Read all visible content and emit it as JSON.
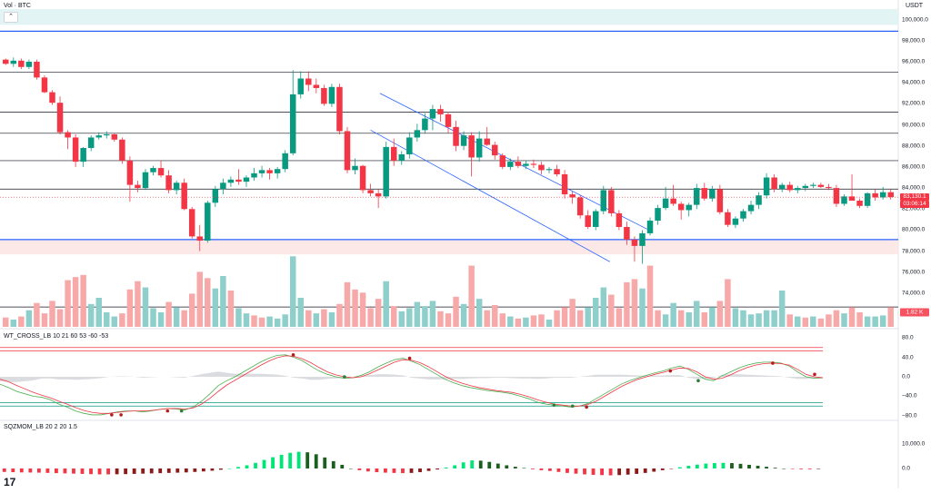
{
  "header": {
    "title": "Vol · BTC",
    "collapse_icon": "chevron-up-icon"
  },
  "price_axis": {
    "currency": "USDT",
    "ticks": [
      "100,000.0",
      "98,000.0",
      "96,000.0",
      "94,000.0",
      "92,000.0",
      "90,000.0",
      "88,000.0",
      "86,000.0",
      "84,000.0",
      "82,000.0",
      "80,000.0",
      "78,000.0",
      "76,000.0",
      "74,000.0",
      "72,000.0"
    ],
    "last_price": "83,130.1",
    "countdown": "03:06:14",
    "volume_value": "1.82 K"
  },
  "indicators": {
    "wt_cross": {
      "label": "WT_CROSS_LB 10 21 60 53 -60 -53",
      "ticks": [
        "80.0",
        "40.0",
        "0.0",
        "−40.0",
        "−80.0"
      ]
    },
    "sqz_mom": {
      "label": "SQZMOM_LB 20 2 20 1.5",
      "ticks": [
        "10,000.0",
        "0.0"
      ]
    }
  },
  "chart_data": {
    "type": "candlestick",
    "ylim": [
      71500,
      101000
    ],
    "grid": false,
    "horizontal_levels": [
      98900,
      95000,
      91200,
      89200,
      86600,
      83900,
      79100,
      72700
    ],
    "resistance_zone": [
      99500,
      101000
    ],
    "support_zone": [
      77700,
      79100
    ],
    "channel": {
      "upper": [
        [
          0.408,
          93000
        ],
        [
          0.695,
          80100
        ]
      ],
      "lower": [
        [
          0.398,
          89500
        ],
        [
          0.655,
          77000
        ]
      ]
    },
    "candles": [
      [
        96200,
        96300,
        95700,
        95800
      ],
      [
        95800,
        96400,
        95500,
        96100
      ],
      [
        96100,
        96300,
        95300,
        95500
      ],
      [
        95500,
        96200,
        95300,
        96000
      ],
      [
        96000,
        96200,
        94300,
        94500
      ],
      [
        94500,
        94700,
        93000,
        93100
      ],
      [
        93100,
        93300,
        91900,
        92100
      ],
      [
        92100,
        92700,
        89100,
        89300
      ],
      [
        89300,
        89500,
        87700,
        88800
      ],
      [
        88800,
        89100,
        86000,
        86500
      ],
      [
        86500,
        87900,
        86000,
        87800
      ],
      [
        87800,
        89000,
        87500,
        88800
      ],
      [
        88800,
        89300,
        88600,
        89000
      ],
      [
        89000,
        89400,
        88700,
        89100
      ],
      [
        89100,
        89200,
        88400,
        88600
      ],
      [
        88600,
        88800,
        86300,
        86600
      ],
      [
        86600,
        87000,
        82700,
        84300
      ],
      [
        84300,
        84700,
        83600,
        84000
      ],
      [
        84000,
        85800,
        83800,
        85500
      ],
      [
        85500,
        86100,
        85200,
        85900
      ],
      [
        85900,
        86600,
        85000,
        85200
      ],
      [
        85200,
        85700,
        83500,
        83800
      ],
      [
        83800,
        84700,
        83400,
        84500
      ],
      [
        84500,
        84900,
        81900,
        82000
      ],
      [
        82000,
        82200,
        79200,
        79400
      ],
      [
        79400,
        80500,
        78000,
        79000
      ],
      [
        79000,
        82800,
        78800,
        82600
      ],
      [
        82600,
        84200,
        82200,
        83900
      ],
      [
        83900,
        84900,
        83400,
        84500
      ],
      [
        84500,
        85100,
        84100,
        84800
      ],
      [
        84800,
        85800,
        84300,
        84600
      ],
      [
        84600,
        85200,
        84100,
        85000
      ],
      [
        85000,
        85900,
        84700,
        85400
      ],
      [
        85400,
        86100,
        85000,
        85700
      ],
      [
        85700,
        85900,
        84800,
        85400
      ],
      [
        85400,
        86000,
        84900,
        85800
      ],
      [
        85800,
        87600,
        85500,
        87300
      ],
      [
        87300,
        95200,
        87100,
        92900
      ],
      [
        92900,
        95100,
        92500,
        94400
      ],
      [
        94400,
        95100,
        93200,
        93800
      ],
      [
        93800,
        94400,
        93000,
        93500
      ],
      [
        93500,
        93800,
        91800,
        92000
      ],
      [
        92000,
        93900,
        91700,
        93600
      ],
      [
        93600,
        93900,
        89100,
        89400
      ],
      [
        89400,
        89800,
        85400,
        85700
      ],
      [
        85700,
        86800,
        85300,
        86100
      ],
      [
        86100,
        86200,
        83500,
        83800
      ],
      [
        83800,
        84400,
        83200,
        83500
      ],
      [
        83500,
        83900,
        82100,
        83200
      ],
      [
        83200,
        88400,
        83000,
        87900
      ],
      [
        87900,
        88700,
        86100,
        86600
      ],
      [
        86600,
        87500,
        86200,
        87200
      ],
      [
        87200,
        89300,
        86800,
        88800
      ],
      [
        88800,
        90100,
        88400,
        89500
      ],
      [
        89500,
        91100,
        89200,
        90600
      ],
      [
        90600,
        91900,
        89500,
        91500
      ],
      [
        91500,
        91900,
        90300,
        91000
      ],
      [
        91000,
        91200,
        89200,
        89800
      ],
      [
        89800,
        90400,
        87500,
        88000
      ],
      [
        88000,
        89400,
        87600,
        89000
      ],
      [
        89000,
        89300,
        85100,
        86900
      ],
      [
        86900,
        89400,
        86500,
        88700
      ],
      [
        88700,
        89800,
        88000,
        88100
      ],
      [
        88100,
        88400,
        86700,
        87100
      ],
      [
        87100,
        87300,
        85800,
        86000
      ],
      [
        86000,
        86800,
        85700,
        86500
      ],
      [
        86500,
        87000,
        85900,
        86100
      ],
      [
        86100,
        86600,
        85800,
        86300
      ],
      [
        86300,
        86700,
        85900,
        86200
      ],
      [
        86200,
        86500,
        85300,
        85700
      ],
      [
        85700,
        86000,
        85400,
        85800
      ],
      [
        85800,
        86200,
        85100,
        85300
      ],
      [
        85300,
        85700,
        83000,
        83400
      ],
      [
        83400,
        83700,
        82500,
        83100
      ],
      [
        83100,
        83300,
        81100,
        81400
      ],
      [
        81400,
        81900,
        80100,
        80300
      ],
      [
        80300,
        82000,
        80000,
        81800
      ],
      [
        81800,
        84200,
        81500,
        83800
      ],
      [
        83800,
        84100,
        81300,
        81600
      ],
      [
        81600,
        81900,
        80000,
        80300
      ],
      [
        80300,
        80800,
        78600,
        79100
      ],
      [
        79100,
        79400,
        77000,
        78500
      ],
      [
        78500,
        80000,
        76800,
        79700
      ],
      [
        79700,
        81200,
        79500,
        80900
      ],
      [
        80900,
        82400,
        80500,
        82100
      ],
      [
        82100,
        84100,
        81900,
        83000
      ],
      [
        83000,
        84300,
        82300,
        82500
      ],
      [
        82500,
        82700,
        81000,
        81900
      ],
      [
        81900,
        82600,
        81300,
        82400
      ],
      [
        82400,
        84400,
        82000,
        84000
      ],
      [
        84000,
        84500,
        82800,
        83000
      ],
      [
        83000,
        84200,
        82700,
        83900
      ],
      [
        83900,
        84300,
        81500,
        81700
      ],
      [
        81700,
        82000,
        80300,
        80500
      ],
      [
        80500,
        81300,
        80200,
        81100
      ],
      [
        81100,
        82000,
        80800,
        81800
      ],
      [
        81800,
        82800,
        81500,
        82400
      ],
      [
        82400,
        83600,
        82000,
        83300
      ],
      [
        83300,
        85400,
        83000,
        85000
      ],
      [
        85000,
        85300,
        83600,
        83900
      ],
      [
        83900,
        84500,
        83600,
        84300
      ],
      [
        84300,
        84600,
        83600,
        83800
      ],
      [
        83800,
        84200,
        83500,
        84000
      ],
      [
        84000,
        84400,
        83700,
        84200
      ],
      [
        84200,
        84500,
        84000,
        84300
      ],
      [
        84300,
        84500,
        84000,
        84100
      ],
      [
        84100,
        84400,
        83800,
        84000
      ],
      [
        84000,
        84300,
        82200,
        82500
      ],
      [
        82500,
        83400,
        82300,
        83200
      ],
      [
        83200,
        85300,
        83000,
        82800
      ],
      [
        82800,
        83000,
        82100,
        82300
      ],
      [
        82300,
        83600,
        82100,
        83500
      ],
      [
        83500,
        83900,
        82800,
        83100
      ],
      [
        83100,
        84100,
        82900,
        83600
      ],
      [
        83600,
        83900,
        82900,
        83130
      ]
    ],
    "volume": [
      [
        0.9,
        0
      ],
      [
        0.7,
        1
      ],
      [
        1.0,
        0
      ],
      [
        1.6,
        1
      ],
      [
        2.3,
        0
      ],
      [
        1.3,
        0
      ],
      [
        2.5,
        0
      ],
      [
        1.7,
        0
      ],
      [
        4.5,
        0
      ],
      [
        4.8,
        0
      ],
      [
        5.0,
        0
      ],
      [
        2.2,
        1
      ],
      [
        2.8,
        1
      ],
      [
        1.4,
        1
      ],
      [
        1.0,
        1
      ],
      [
        1.3,
        0
      ],
      [
        3.6,
        0
      ],
      [
        4.4,
        0
      ],
      [
        3.8,
        1
      ],
      [
        1.8,
        1
      ],
      [
        1.4,
        1
      ],
      [
        2.4,
        0
      ],
      [
        1.9,
        1
      ],
      [
        1.6,
        0
      ],
      [
        3.2,
        0
      ],
      [
        5.3,
        0
      ],
      [
        4.7,
        0
      ],
      [
        3.7,
        1
      ],
      [
        4.9,
        1
      ],
      [
        3.5,
        0
      ],
      [
        1.8,
        1
      ],
      [
        1.3,
        1
      ],
      [
        1.1,
        0
      ],
      [
        0.9,
        0
      ],
      [
        1.0,
        1
      ],
      [
        0.8,
        1
      ],
      [
        1.2,
        1
      ],
      [
        6.8,
        1
      ],
      [
        2.8,
        1
      ],
      [
        1.6,
        0
      ],
      [
        1.3,
        1
      ],
      [
        1.7,
        0
      ],
      [
        1.4,
        1
      ],
      [
        2.2,
        0
      ],
      [
        4.3,
        0
      ],
      [
        3.6,
        0
      ],
      [
        3.3,
        0
      ],
      [
        1.8,
        0
      ],
      [
        2.7,
        0
      ],
      [
        4.4,
        1
      ],
      [
        2.0,
        0
      ],
      [
        1.5,
        1
      ],
      [
        1.8,
        1
      ],
      [
        2.4,
        1
      ],
      [
        2.0,
        1
      ],
      [
        2.5,
        1
      ],
      [
        1.5,
        0
      ],
      [
        1.3,
        0
      ],
      [
        2.9,
        0
      ],
      [
        2.2,
        1
      ],
      [
        5.9,
        0
      ],
      [
        2.7,
        1
      ],
      [
        1.6,
        0
      ],
      [
        2.1,
        0
      ],
      [
        1.3,
        0
      ],
      [
        1.0,
        1
      ],
      [
        0.8,
        0
      ],
      [
        0.9,
        1
      ],
      [
        1.1,
        0
      ],
      [
        1.2,
        0
      ],
      [
        0.7,
        1
      ],
      [
        1.6,
        0
      ],
      [
        1.9,
        0
      ],
      [
        2.7,
        0
      ],
      [
        1.6,
        0
      ],
      [
        1.9,
        1
      ],
      [
        2.8,
        1
      ],
      [
        3.8,
        1
      ],
      [
        3.1,
        0
      ],
      [
        1.8,
        0
      ],
      [
        4.3,
        0
      ],
      [
        4.6,
        0
      ],
      [
        3.7,
        1
      ],
      [
        5.9,
        0
      ],
      [
        1.6,
        0
      ],
      [
        1.2,
        1
      ],
      [
        2.3,
        1
      ],
      [
        1.6,
        0
      ],
      [
        1.4,
        1
      ],
      [
        2.5,
        1
      ],
      [
        1.4,
        0
      ],
      [
        1.9,
        1
      ],
      [
        2.5,
        0
      ],
      [
        4.6,
        0
      ],
      [
        1.8,
        1
      ],
      [
        1.6,
        1
      ],
      [
        1.2,
        1
      ],
      [
        1.3,
        1
      ],
      [
        1.6,
        1
      ],
      [
        1.6,
        1
      ],
      [
        3.5,
        1
      ],
      [
        1.2,
        0
      ],
      [
        1.0,
        1
      ],
      [
        0.9,
        0
      ],
      [
        1.0,
        1
      ],
      [
        0.8,
        0
      ],
      [
        1.2,
        0
      ],
      [
        1.6,
        0
      ],
      [
        1.3,
        1
      ],
      [
        1.9,
        0
      ],
      [
        1.4,
        0
      ],
      [
        1.0,
        1
      ],
      [
        1.0,
        1
      ],
      [
        1.1,
        1
      ],
      [
        1.9,
        0
      ]
    ],
    "wt": {
      "ob_levels": [
        60,
        53
      ],
      "os_levels": [
        -60,
        -53
      ],
      "wt1": [
        -15,
        -22,
        -30,
        -35,
        -40,
        -42,
        -47,
        -56,
        -62,
        -70,
        -75,
        -78,
        -78,
        -75,
        -72,
        -70,
        -70,
        -72,
        -70,
        -67,
        -65,
        -66,
        -68,
        -62,
        -50,
        -35,
        -18,
        -8,
        0,
        10,
        20,
        30,
        38,
        44,
        45,
        40,
        33,
        22,
        12,
        5,
        0,
        -3,
        -2,
        3,
        10,
        20,
        28,
        35,
        38,
        32,
        25,
        15,
        5,
        -5,
        -12,
        -18,
        -22,
        -25,
        -28,
        -30,
        -32,
        -35,
        -40,
        -45,
        -52,
        -56,
        -58,
        -60,
        -62,
        -60,
        -55,
        -45,
        -35,
        -25,
        -15,
        -8,
        -2,
        3,
        8,
        12,
        18,
        22,
        15,
        5,
        -5,
        -8,
        2,
        10,
        18,
        24,
        28,
        30,
        30,
        28,
        22,
        10,
        0,
        -3,
        -2
      ],
      "wt2": [
        -5,
        -10,
        -18,
        -25,
        -32,
        -38,
        -43,
        -50,
        -56,
        -63,
        -69,
        -73,
        -75,
        -75,
        -73,
        -71,
        -70,
        -70,
        -69,
        -67,
        -65,
        -65,
        -66,
        -64,
        -56,
        -44,
        -30,
        -17,
        -7,
        3,
        13,
        23,
        32,
        39,
        43,
        42,
        37,
        29,
        19,
        10,
        4,
        0,
        -2,
        0,
        6,
        14,
        22,
        30,
        35,
        34,
        29,
        21,
        11,
        1,
        -7,
        -13,
        -18,
        -22,
        -25,
        -28,
        -30,
        -32,
        -36,
        -41,
        -47,
        -52,
        -56,
        -58,
        -60,
        -60,
        -57,
        -50,
        -40,
        -30,
        -20,
        -12,
        -5,
        0,
        5,
        9,
        14,
        18,
        17,
        10,
        0,
        -5,
        -3,
        4,
        12,
        19,
        24,
        27,
        28,
        27,
        24,
        15,
        5,
        0,
        -2
      ],
      "cross_dots": [
        [
          0.12,
          -78,
          0
        ],
        [
          0.13,
          -78,
          0
        ],
        [
          0.18,
          -70,
          0
        ],
        [
          0.195,
          -70,
          1
        ],
        [
          0.315,
          45,
          0
        ],
        [
          0.37,
          0,
          1
        ],
        [
          0.44,
          38,
          0
        ],
        [
          0.595,
          -58,
          1
        ],
        [
          0.615,
          -60,
          1
        ],
        [
          0.63,
          -62,
          0
        ],
        [
          0.72,
          12,
          0
        ],
        [
          0.75,
          -8,
          1
        ],
        [
          0.83,
          28,
          0
        ],
        [
          0.875,
          5,
          0
        ]
      ]
    },
    "sqz": {
      "values": [
        -1400,
        -1500,
        -1600,
        -1650,
        -1700,
        -1800,
        -1900,
        -2000,
        -2100,
        -2200,
        -2300,
        -2400,
        -2400,
        -2350,
        -2300,
        -2200,
        -2100,
        -2000,
        -1900,
        -1800,
        -1700,
        -1600,
        -1400,
        -1200,
        -900,
        -500,
        0,
        600,
        1300,
        2300,
        3500,
        4600,
        5600,
        6400,
        6800,
        6600,
        5800,
        4500,
        3000,
        1500,
        0,
        -700,
        -1200,
        -1500,
        -1700,
        -1800,
        -1900,
        -1800,
        -1500,
        -1000,
        -400,
        400,
        1300,
        2500,
        3300,
        3200,
        2700,
        2000,
        1300,
        700,
        200,
        -300,
        -700,
        -1000,
        -1400,
        -1800,
        -2100,
        -2400,
        -2600,
        -2700,
        -2800,
        -2700,
        -2500,
        -2200,
        -1800,
        -1300,
        -700,
        -100,
        500,
        1100,
        1600,
        2000,
        2200,
        2300,
        2200,
        1900,
        1500,
        1100,
        700,
        300,
        0,
        -200,
        -300,
        -300,
        -200
      ]
    }
  }
}
